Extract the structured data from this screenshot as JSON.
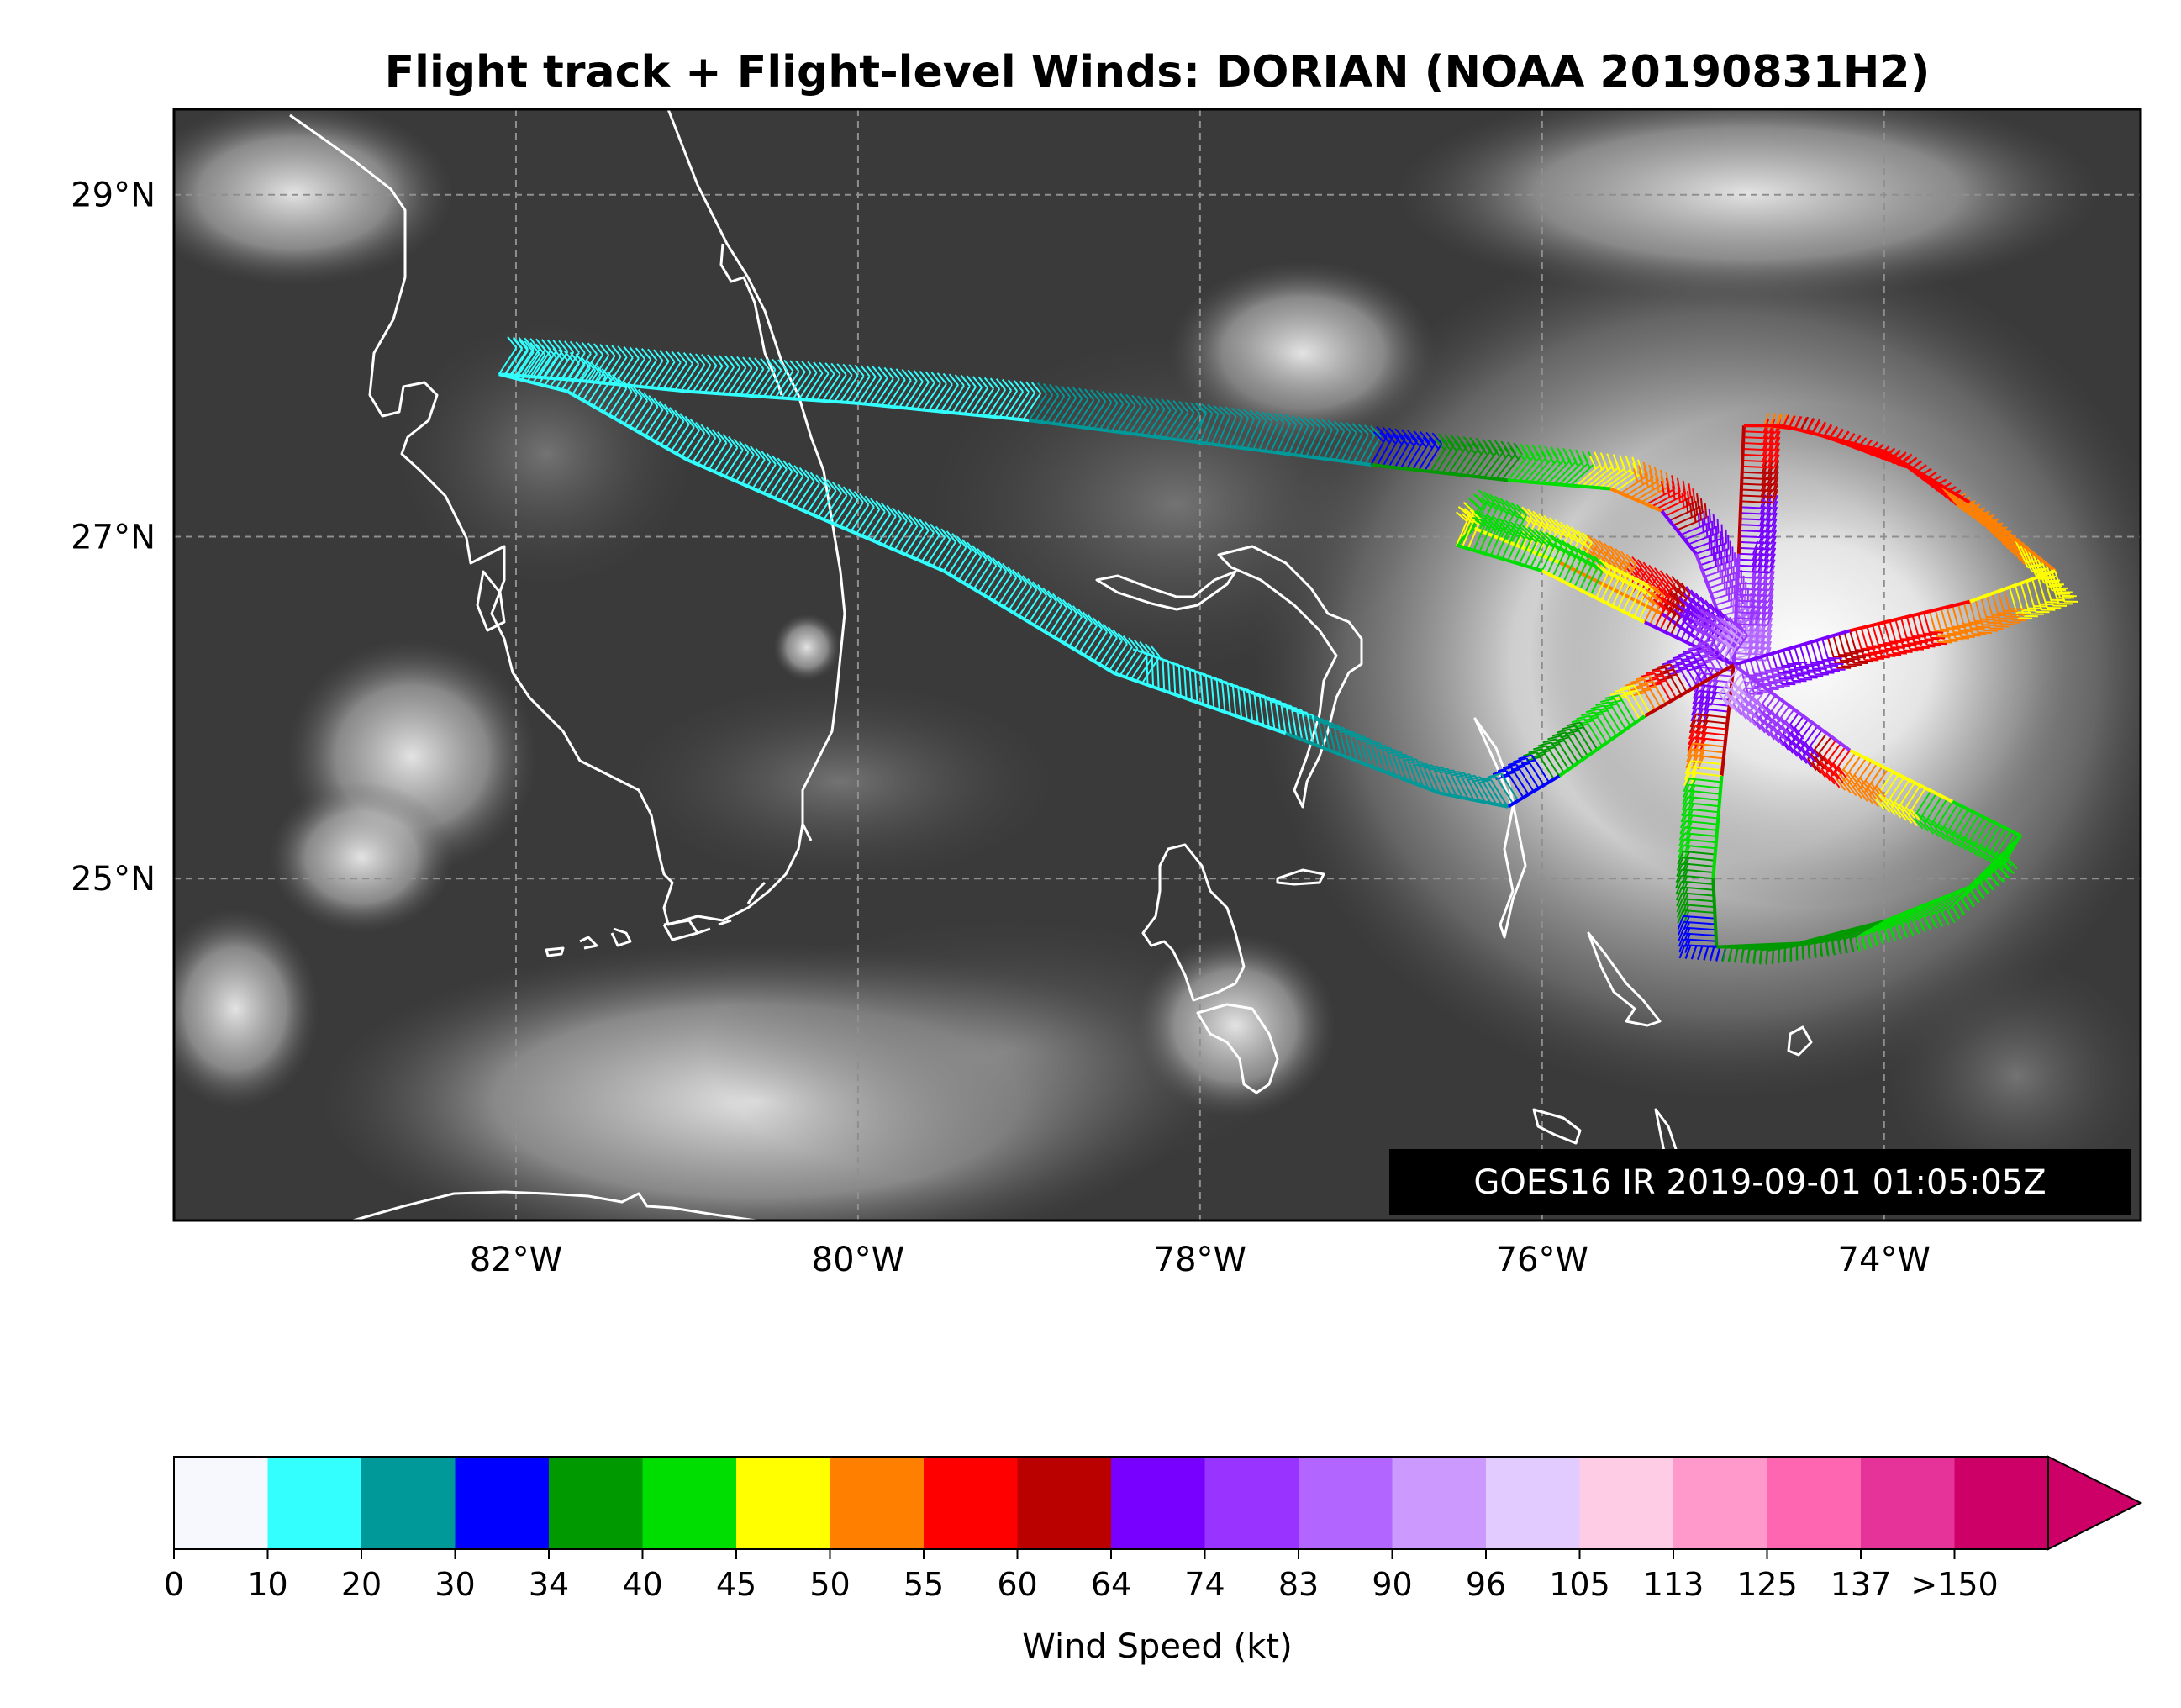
{
  "title": "Flight track + Flight-level Winds: DORIAN (NOAA 20190831H2)",
  "map": {
    "lon_range": [
      -84.0,
      -72.5
    ],
    "lat_range": [
      23.0,
      29.5
    ],
    "lat_ticks": [
      {
        "value": 29,
        "label": "29°N"
      },
      {
        "value": 27,
        "label": "27°N"
      },
      {
        "value": 25,
        "label": "25°N"
      }
    ],
    "lon_ticks": [
      {
        "value": -82,
        "label": "82°W"
      },
      {
        "value": -80,
        "label": "80°W"
      },
      {
        "value": -78,
        "label": "78°W"
      },
      {
        "value": -76,
        "label": "76°W"
      },
      {
        "value": -74,
        "label": "74°W"
      }
    ],
    "gridlines": true,
    "annotation": "GOES16 IR 2019-09-01 01:05:05Z"
  },
  "colorbar": {
    "label": "Wind Speed (kt)",
    "tick_labels": [
      "0",
      "10",
      "20",
      "30",
      "34",
      "40",
      "45",
      "50",
      "55",
      "60",
      "64",
      "74",
      "83",
      "90",
      "96",
      "105",
      "113",
      "125",
      "137",
      ">150"
    ],
    "colors": [
      "#f7f8fd",
      "#33ffff",
      "#009999",
      "#0000ff",
      "#009900",
      "#00dd00",
      "#ffff00",
      "#ff8000",
      "#ff0000",
      "#bb0000",
      "#7700ff",
      "#9933ff",
      "#b366ff",
      "#cc99ff",
      "#e2ccff",
      "#ffcce6",
      "#ff99cc",
      "#ff66b2",
      "#e63399",
      "#cc0066"
    ],
    "extend": "max"
  },
  "track": [
    {
      "points": [
        [
          -82.1,
          27.95
        ],
        [
          -81.7,
          27.92
        ],
        [
          -81.0,
          27.85
        ],
        [
          -80.0,
          27.78
        ],
        [
          -79.0,
          27.68
        ],
        [
          -78.0,
          27.55
        ],
        [
          -77.0,
          27.42
        ],
        [
          -76.2,
          27.33
        ],
        [
          -75.6,
          27.28
        ],
        [
          -75.3,
          27.15
        ],
        [
          -75.1,
          26.9
        ],
        [
          -74.95,
          26.5
        ],
        [
          -74.88,
          26.25
        ]
      ],
      "speeds": [
        15,
        15,
        12,
        12,
        20,
        20,
        30,
        40,
        48,
        58,
        70,
        85,
        96
      ]
    },
    {
      "points": [
        [
          -74.88,
          26.25
        ],
        [
          -74.85,
          26.9
        ],
        [
          -74.82,
          27.65
        ]
      ],
      "speeds": [
        90,
        70,
        55
      ]
    },
    {
      "points": [
        [
          -74.82,
          27.65
        ],
        [
          -74.6,
          27.65
        ],
        [
          -74.0,
          27.5
        ],
        [
          -73.5,
          27.2
        ],
        [
          -73.0,
          26.8
        ]
      ],
      "speeds": [
        52,
        60,
        58,
        53,
        47
      ]
    },
    {
      "points": [
        [
          -73.0,
          26.8
        ],
        [
          -73.5,
          26.62
        ],
        [
          -74.2,
          26.45
        ],
        [
          -74.88,
          26.25
        ]
      ],
      "speeds": [
        47,
        52,
        60,
        80
      ]
    },
    {
      "points": [
        [
          -74.88,
          26.25
        ],
        [
          -75.3,
          26.55
        ],
        [
          -75.9,
          26.85
        ],
        [
          -76.4,
          27.05
        ],
        [
          -76.5,
          26.95
        ]
      ],
      "speeds": [
        80,
        60,
        48,
        42,
        46
      ]
    },
    {
      "points": [
        [
          -76.5,
          26.95
        ],
        [
          -76.0,
          26.8
        ],
        [
          -75.4,
          26.5
        ],
        [
          -74.88,
          26.25
        ]
      ],
      "speeds": [
        46,
        40,
        50,
        96
      ]
    },
    {
      "points": [
        [
          -74.88,
          26.25
        ],
        [
          -74.95,
          25.6
        ],
        [
          -75.0,
          25.0
        ],
        [
          -74.98,
          24.6
        ]
      ],
      "speeds": [
        80,
        45,
        38,
        30
      ]
    },
    {
      "points": [
        [
          -74.98,
          24.6
        ],
        [
          -74.5,
          24.62
        ],
        [
          -74.0,
          24.75
        ],
        [
          -73.5,
          24.95
        ],
        [
          -73.2,
          25.25
        ]
      ],
      "speeds": [
        30,
        38,
        40,
        42,
        40
      ]
    },
    {
      "points": [
        [
          -73.2,
          25.25
        ],
        [
          -73.6,
          25.45
        ],
        [
          -74.2,
          25.75
        ],
        [
          -74.88,
          26.25
        ]
      ],
      "speeds": [
        40,
        42,
        55,
        96
      ]
    },
    {
      "points": [
        [
          -74.88,
          26.25
        ],
        [
          -75.4,
          25.95
        ],
        [
          -75.9,
          25.6
        ],
        [
          -76.2,
          25.42
        ],
        [
          -76.6,
          25.5
        ]
      ],
      "speeds": [
        80,
        46,
        35,
        28,
        28
      ]
    },
    {
      "points": [
        [
          -76.6,
          25.5
        ],
        [
          -77.5,
          25.85
        ],
        [
          -78.5,
          26.2
        ],
        [
          -79.5,
          26.8
        ],
        [
          -80.2,
          27.1
        ],
        [
          -81.0,
          27.45
        ],
        [
          -81.7,
          27.85
        ],
        [
          -82.1,
          27.95
        ]
      ],
      "speeds": [
        26,
        18,
        14,
        12,
        10,
        12,
        14,
        15
      ]
    }
  ]
}
